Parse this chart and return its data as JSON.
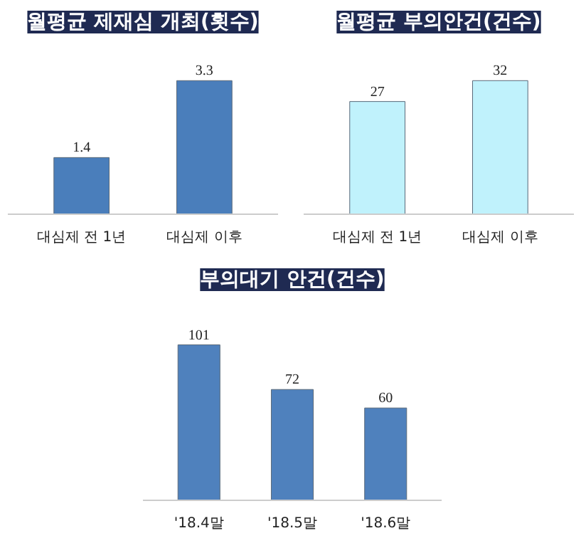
{
  "chart_data": [
    {
      "type": "bar",
      "title": "월평균 제재심 개최(횟수)",
      "categories": [
        "대심제 전 1년",
        "대심제 이후"
      ],
      "values": [
        1.4,
        3.3
      ],
      "color": "#4a7ebb",
      "data_labels": true
    },
    {
      "type": "bar",
      "title": "월평균 부의안건(건수)",
      "categories": [
        "대심제 전 1년",
        "대심제 이후"
      ],
      "values": [
        27,
        32
      ],
      "color": "#c0f2fc",
      "data_labels": true
    },
    {
      "type": "bar",
      "title": "부의대기 안건(건수)",
      "categories": [
        "'18.4말",
        "'18.5말",
        "'18.6말"
      ],
      "values": [
        101,
        72,
        60
      ],
      "color": "#4f81bd",
      "data_labels": true
    }
  ]
}
